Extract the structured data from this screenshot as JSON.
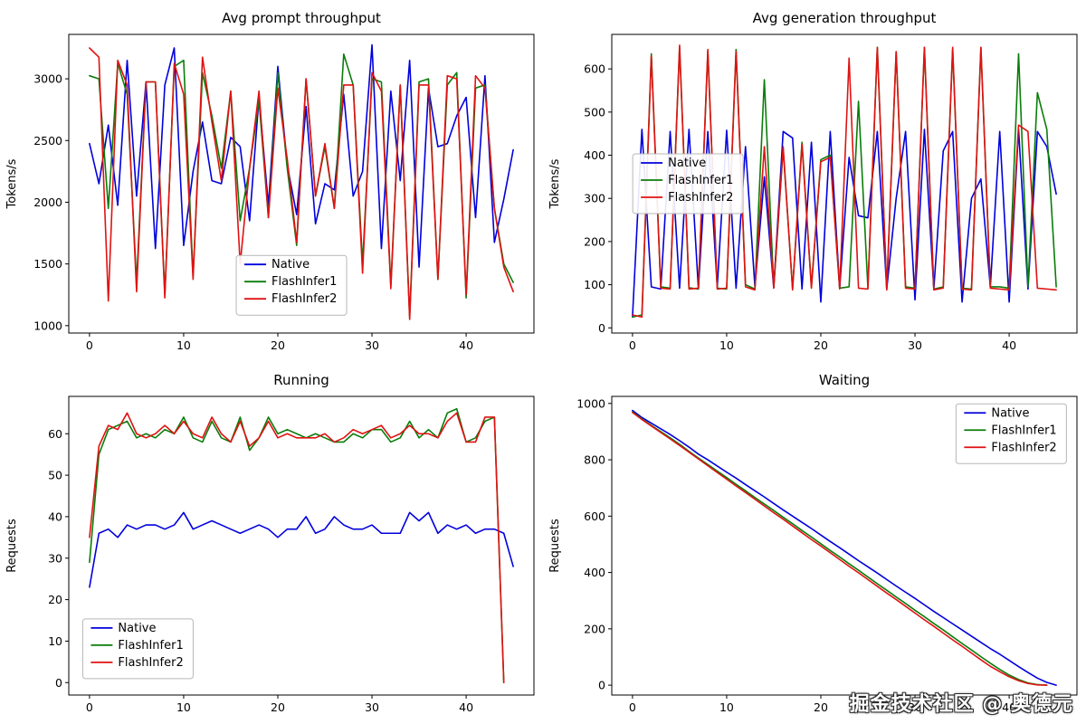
{
  "watermark": {
    "text": "掘金技术社区 @ 奥德元"
  },
  "palette": {
    "native": "#0000dd",
    "flashinfer1": "#0a7d0a",
    "flashinfer2": "#e01212"
  },
  "chart_data": [
    {
      "id": "avg-prompt-throughput",
      "type": "line",
      "title": "Avg prompt throughput",
      "xlabel": "",
      "ylabel": "Tokens/s",
      "xlim": [
        -2.2,
        47.2
      ],
      "ylim": [
        940,
        3360
      ],
      "xticks": [
        0,
        10,
        20,
        30,
        40
      ],
      "yticks": [
        1000,
        1500,
        2000,
        2500,
        3000
      ],
      "legend": {
        "x": 0.36,
        "y": 0.74
      },
      "series": [
        {
          "name": "Native",
          "color": "#0000dd",
          "values": [
            2475,
            2150,
            2625,
            1975,
            3150,
            2050,
            2975,
            1625,
            2950,
            3250,
            1650,
            2250,
            2650,
            2175,
            2150,
            2525,
            2450,
            1850,
            2850,
            1975,
            3100,
            2300,
            1900,
            2775,
            1825,
            2150,
            2100,
            2875,
            2050,
            2250,
            3275,
            1625,
            2900,
            2175,
            3150,
            1475,
            2925,
            2450,
            2475,
            2700,
            2850,
            1875,
            3025,
            1675,
            2025,
            2425
          ]
        },
        {
          "name": "FlashInfer1",
          "color": "#0a7d0a",
          "values": [
            3025,
            3000,
            1950,
            3125,
            2875,
            1350,
            2975,
            2975,
            1250,
            3100,
            3150,
            1400,
            3050,
            2700,
            2275,
            2900,
            1850,
            2275,
            2825,
            1875,
            3050,
            2275,
            1650,
            3000,
            2050,
            2450,
            1950,
            3200,
            2950,
            1500,
            3000,
            2975,
            1325,
            2950,
            1075,
            2975,
            3000,
            1375,
            2950,
            3050,
            1225,
            2925,
            2950,
            1950,
            1500,
            1350
          ]
        },
        {
          "name": "FlashInfer2",
          "color": "#e01212",
          "values": [
            3250,
            3175,
            1200,
            3150,
            2950,
            1275,
            2975,
            2975,
            1225,
            3125,
            2875,
            1375,
            3175,
            2650,
            2175,
            2900,
            1500,
            2275,
            2900,
            1875,
            2925,
            2350,
            1675,
            3000,
            2050,
            2475,
            1950,
            2950,
            2950,
            1425,
            3050,
            2900,
            1300,
            2950,
            1050,
            2950,
            2950,
            1375,
            3025,
            3000,
            1250,
            3025,
            2925,
            1950,
            1475,
            1275
          ]
        }
      ]
    },
    {
      "id": "avg-generation-throughput",
      "type": "line",
      "title": "Avg generation throughput",
      "xlabel": "",
      "ylabel": "Tokens/s",
      "xlim": [
        -2.2,
        47.2
      ],
      "ylim": [
        -12,
        680
      ],
      "xticks": [
        0,
        10,
        20,
        30,
        40
      ],
      "yticks": [
        0,
        100,
        200,
        300,
        400,
        500,
        600
      ],
      "legend": {
        "x": 0.045,
        "y": 0.4
      },
      "series": [
        {
          "name": "Native",
          "color": "#0000dd",
          "values": [
            25,
            460,
            95,
            90,
            455,
            92,
            460,
            90,
            455,
            95,
            458,
            92,
            420,
            95,
            350,
            93,
            455,
            440,
            90,
            430,
            60,
            455,
            92,
            395,
            260,
            255,
            455,
            90,
            300,
            455,
            65,
            460,
            90,
            410,
            455,
            60,
            300,
            345,
            95,
            455,
            60,
            460,
            90,
            455,
            420,
            310
          ]
        },
        {
          "name": "FlashInfer1",
          "color": "#0a7d0a",
          "values": [
            25,
            30,
            635,
            95,
            92,
            650,
            93,
            90,
            640,
            92,
            90,
            645,
            100,
            90,
            575,
            95,
            415,
            90,
            430,
            95,
            390,
            400,
            92,
            95,
            525,
            92,
            650,
            90,
            640,
            95,
            92,
            650,
            90,
            95,
            645,
            92,
            90,
            650,
            95,
            95,
            92,
            635,
            95,
            545,
            460,
            95
          ]
        },
        {
          "name": "FlashInfer2",
          "color": "#e01212",
          "values": [
            30,
            25,
            630,
            92,
            90,
            655,
            90,
            92,
            645,
            90,
            92,
            640,
            95,
            88,
            420,
            92,
            420,
            88,
            425,
            92,
            385,
            395,
            90,
            625,
            92,
            90,
            650,
            88,
            640,
            92,
            90,
            650,
            88,
            92,
            650,
            90,
            88,
            650,
            92,
            90,
            88,
            470,
            455,
            92,
            90,
            88
          ]
        }
      ]
    },
    {
      "id": "running",
      "type": "line",
      "title": "Running",
      "xlabel": "",
      "ylabel": "Requests",
      "xlim": [
        -2.2,
        47.2
      ],
      "ylim": [
        -3,
        69
      ],
      "xticks": [
        0,
        10,
        20,
        30,
        40
      ],
      "yticks": [
        0,
        10,
        20,
        30,
        40,
        50,
        60
      ],
      "legend": {
        "x": 0.03,
        "y": 0.745
      },
      "series": [
        {
          "name": "Native",
          "color": "#0000dd",
          "values": [
            23,
            36,
            37,
            35,
            38,
            37,
            38,
            38,
            37,
            38,
            41,
            37,
            38,
            39,
            38,
            37,
            36,
            37,
            38,
            37,
            35,
            37,
            37,
            40,
            36,
            37,
            40,
            38,
            37,
            37,
            38,
            36,
            36,
            36,
            41,
            39,
            41,
            36,
            38,
            37,
            38,
            36,
            37,
            37,
            36,
            28
          ]
        },
        {
          "name": "FlashInfer1",
          "color": "#0a7d0a",
          "values": [
            29,
            55,
            61,
            62,
            63,
            59,
            60,
            59,
            61,
            60,
            64,
            59,
            58,
            63,
            59,
            58,
            64,
            56,
            59,
            64,
            60,
            61,
            60,
            59,
            60,
            59,
            58,
            58,
            60,
            59,
            61,
            61,
            58,
            59,
            63,
            59,
            61,
            59,
            65,
            66,
            58,
            59,
            63,
            64,
            0
          ]
        },
        {
          "name": "FlashInfer2",
          "color": "#e01212",
          "values": [
            35,
            57,
            62,
            61,
            65,
            60,
            59,
            60,
            62,
            60,
            63,
            60,
            59,
            64,
            60,
            58,
            63,
            57,
            59,
            63,
            59,
            60,
            59,
            59,
            59,
            60,
            58,
            59,
            61,
            60,
            61,
            62,
            59,
            60,
            62,
            60,
            60,
            59,
            63,
            65,
            58,
            58,
            64,
            64,
            0
          ]
        }
      ]
    },
    {
      "id": "waiting",
      "type": "line",
      "title": "Waiting",
      "xlabel": "",
      "ylabel": "Requests",
      "xlim": [
        -2.2,
        47.2
      ],
      "ylim": [
        -35,
        1025
      ],
      "xticks": [
        0,
        10,
        20,
        30,
        40
      ],
      "yticks": [
        0,
        200,
        400,
        600,
        800,
        1000
      ],
      "legend": {
        "x": 0.74,
        "y": 0.025
      },
      "series": [
        {
          "name": "Native",
          "color": "#0000dd",
          "values": [
            975,
            950,
            930,
            910,
            890,
            868,
            845,
            820,
            800,
            778,
            756,
            735,
            712,
            690,
            668,
            645,
            622,
            600,
            578,
            556,
            533,
            510,
            488,
            465,
            442,
            420,
            398,
            375,
            352,
            330,
            308,
            285,
            262,
            240,
            218,
            196,
            174,
            152,
            130,
            110,
            88,
            66,
            45,
            25,
            10,
            0
          ]
        },
        {
          "name": "FlashInfer1",
          "color": "#0a7d0a",
          "values": [
            970,
            945,
            922,
            900,
            878,
            855,
            830,
            806,
            783,
            760,
            737,
            713,
            690,
            666,
            643,
            620,
            596,
            573,
            549,
            526,
            502,
            478,
            455,
            431,
            408,
            384,
            360,
            337,
            313,
            290,
            266,
            243,
            219,
            196,
            172,
            148,
            125,
            101,
            78,
            56,
            36,
            20,
            8,
            2,
            0
          ]
        },
        {
          "name": "FlashInfer2",
          "color": "#e01212",
          "values": [
            968,
            943,
            920,
            897,
            874,
            851,
            827,
            803,
            779,
            755,
            731,
            707,
            684,
            660,
            636,
            612,
            589,
            565,
            541,
            517,
            494,
            470,
            446,
            422,
            399,
            375,
            351,
            327,
            304,
            280,
            256,
            232,
            209,
            185,
            161,
            138,
            114,
            90,
            67,
            48,
            30,
            16,
            6,
            1,
            0
          ]
        }
      ]
    }
  ]
}
